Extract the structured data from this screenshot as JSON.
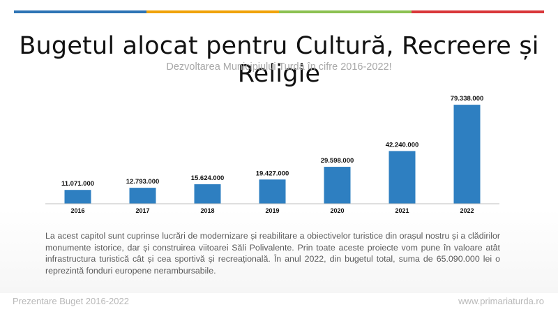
{
  "header": {
    "stripe_colors": [
      "#2e74b5",
      "#f0a30a",
      "#8cc152",
      "#d9373a"
    ]
  },
  "slide": {
    "title": "Bugetul alocat pentru Cultură, Recreere și Religie",
    "subtitle": "Dezvoltarea Municipiului Turda în cifre 2016-2022!",
    "description": "La acest capitol sunt cuprinse lucrări de modernizare și reabilitare a obiectivelor turistice din orașul nostru și a clădirilor monumente istorice, dar și construirea viitoarei Săli Polivalente. Prin toate aceste proiecte vom pune în valoare atât infrastructura turistică cât și cea sportivă și recreațională. În anul 2022, din bugetul total, suma de 65.090.000 lei o reprezintă fonduri europene nerambursabile."
  },
  "footer": {
    "left": "Prezentare Buget 2016-2022",
    "right": "www.primariaturda.ro"
  },
  "chart_data": {
    "type": "bar",
    "title": "Bugetul alocat pentru Cultură, Recreere și Religie",
    "subtitle": "Dezvoltarea Municipiului Turda în cifre 2016-2022!",
    "categories": [
      "2016",
      "2017",
      "2018",
      "2019",
      "2020",
      "2021",
      "2022"
    ],
    "values": [
      11071000,
      12793000,
      15624000,
      19427000,
      29598000,
      42240000,
      79338000
    ],
    "value_labels": [
      "11.071.000",
      "12.793.000",
      "15.624.000",
      "19.427.000",
      "29.598.000",
      "42.240.000",
      "79.338.000"
    ],
    "xlabel": "",
    "ylabel": "",
    "ylim": [
      0,
      85000000
    ],
    "grid": false,
    "legend": "none",
    "bar_color": "#2e7fc1"
  }
}
